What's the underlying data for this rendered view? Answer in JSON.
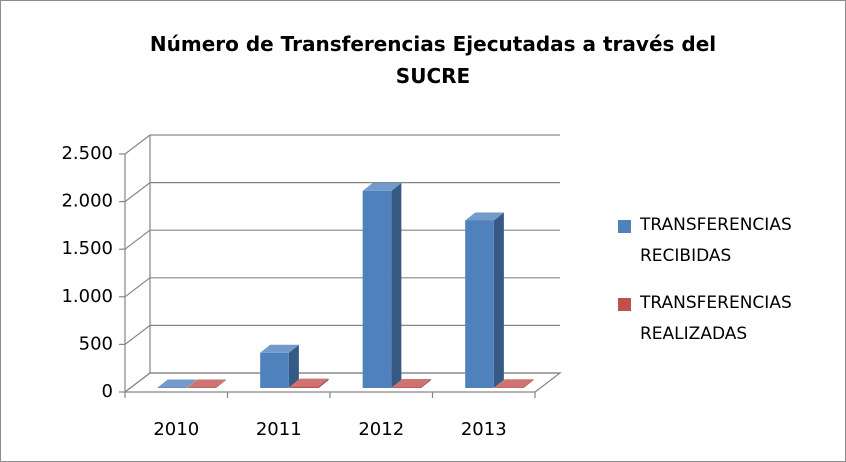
{
  "chart_data": {
    "type": "bar3d",
    "title": "Número de Transferencias Ejecutadas a través del SUCRE",
    "categories": [
      "2010",
      "2011",
      "2012",
      "2013"
    ],
    "series": [
      {
        "name": "TRANSFERENCIAS RECIBIDAS",
        "color": "#4f81bd",
        "values": [
          5,
          370,
          2070,
          1760
        ]
      },
      {
        "name": "TRANSFERENCIAS REALIZADAS",
        "color": "#c0504d",
        "values": [
          5,
          15,
          10,
          8
        ]
      }
    ],
    "ylim": [
      0,
      2500
    ],
    "yticks": [
      0,
      {
        "value": 500,
        "label": "500"
      },
      {
        "value": 1000,
        "label": "1.000"
      },
      {
        "value": 1500,
        "label": "1.500"
      },
      {
        "value": 2000,
        "label": "2.000"
      },
      {
        "value": 2500,
        "label": "2.500"
      }
    ],
    "grid": true,
    "legend": "right"
  }
}
